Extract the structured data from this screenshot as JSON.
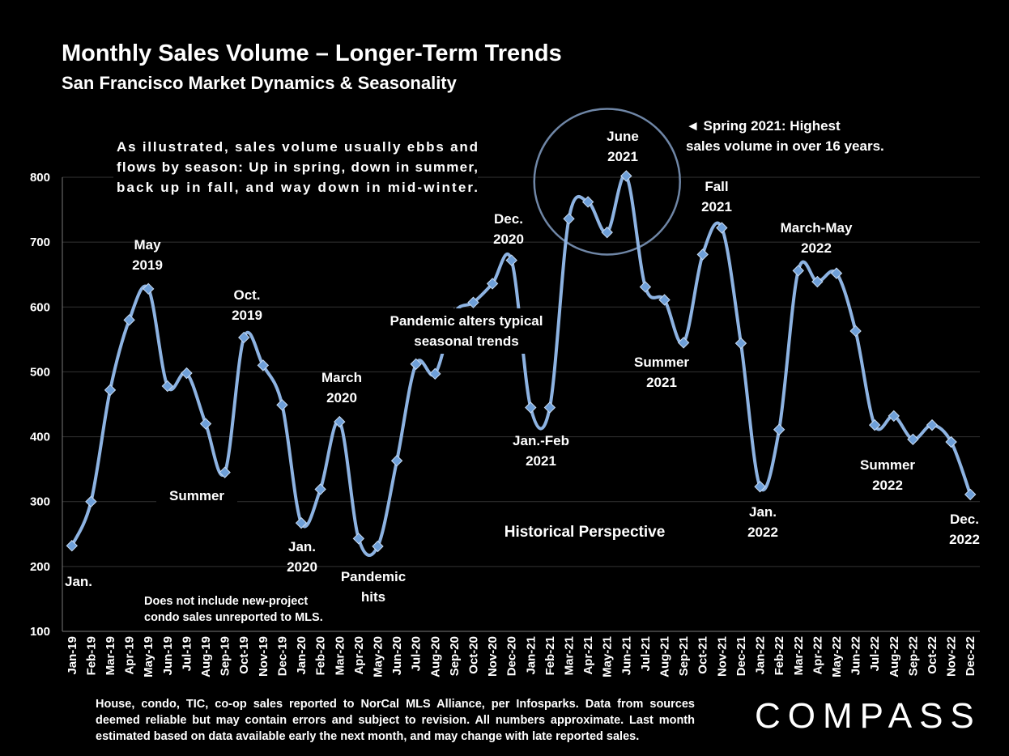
{
  "header": {
    "title": "Monthly Sales Volume – Longer-Term Trends",
    "subtitle": "San Francisco Market Dynamics & Seasonality"
  },
  "footnote": "House, condo, TIC, co-op sales reported to NorCal MLS Alliance, per Infosparks. Data from sources deemed reliable but may contain errors and subject to revision. All numbers approximate. Last month estimated based on data available early the next month, and may change with late reported sales.",
  "logo": "COMPASS",
  "colors": {
    "line": "#8db3e2",
    "marker": "#6e9fd8",
    "grid": "#333333",
    "circle": "#6f86a6"
  },
  "chart_data": {
    "type": "line",
    "title": "Monthly Sales Volume – Longer-Term Trends",
    "ylim": [
      100,
      800
    ],
    "yticks": [
      100,
      200,
      300,
      400,
      500,
      600,
      700,
      800
    ],
    "grid": true,
    "categories": [
      "Jan-19",
      "Feb-19",
      "Mar-19",
      "Apr-19",
      "May-19",
      "Jun-19",
      "Jul-19",
      "Aug-19",
      "Sep-19",
      "Oct-19",
      "Nov-19",
      "Dec-19",
      "Jan-20",
      "Feb-20",
      "Mar-20",
      "Apr-20",
      "May-20",
      "Jun-20",
      "Jul-20",
      "Aug-20",
      "Sep-20",
      "Oct-20",
      "Nov-20",
      "Dec-20",
      "Jan-21",
      "Feb-21",
      "Mar-21",
      "Apr-21",
      "May-21",
      "Jun-21",
      "Jul-21",
      "Aug-21",
      "Sep-21",
      "Oct-21",
      "Nov-21",
      "Dec-21",
      "Jan-22",
      "Feb-22",
      "Mar-22",
      "Apr-22",
      "May-22",
      "Jun-22",
      "Jul-22",
      "Aug-22",
      "Sep-22",
      "Oct-22",
      "Nov-22",
      "Dec-22"
    ],
    "series": [
      {
        "values": [
          232,
          300,
          472,
          580,
          628,
          478,
          498,
          420,
          345,
          553,
          510,
          449,
          267,
          319,
          423,
          243,
          231,
          363,
          512,
          497,
          590,
          607,
          636,
          672,
          445,
          445,
          736,
          762,
          715,
          802,
          631,
          611,
          545,
          681,
          722,
          544,
          323,
          411,
          656,
          639,
          652,
          563,
          418,
          432,
          396,
          418,
          392,
          311
        ]
      }
    ],
    "annotations": [
      {
        "lines": [
          "As illustrated, sales volume usually ebbs and",
          "flows by season: Up in spring, down in summer,",
          "back up in fall, and way down in mid-winter."
        ]
      },
      {
        "lines": [
          "Jan."
        ]
      },
      {
        "lines": [
          "May",
          "2019"
        ]
      },
      {
        "lines": [
          "Oct.",
          "2019"
        ]
      },
      {
        "lines": [
          "Summer"
        ]
      },
      {
        "lines": [
          "March",
          "2020"
        ]
      },
      {
        "lines": [
          "Jan.",
          "2020"
        ]
      },
      {
        "lines": [
          "Pandemic",
          "hits"
        ]
      },
      {
        "lines": [
          "Does not include new-project",
          "condo sales unreported to MLS."
        ]
      },
      {
        "lines": [
          "Dec.",
          "2020"
        ]
      },
      {
        "lines": [
          "Pandemic alters typical",
          "seasonal trends"
        ]
      },
      {
        "lines": [
          "Jan.-Feb",
          "2021"
        ]
      },
      {
        "lines": [
          "June",
          "2021"
        ]
      },
      {
        "lines": [
          "◄  Spring 2021:  Highest",
          "sales volume in over 16 years."
        ]
      },
      {
        "lines": [
          "Fall",
          "2021"
        ]
      },
      {
        "lines": [
          "Summer",
          "2021"
        ]
      },
      {
        "lines": [
          "Historical Perspective"
        ]
      },
      {
        "lines": [
          "March-May",
          "2022"
        ]
      },
      {
        "lines": [
          "Jan.",
          "2022"
        ]
      },
      {
        "lines": [
          "Summer",
          "2022"
        ]
      },
      {
        "lines": [
          "Dec.",
          "2022"
        ]
      }
    ]
  }
}
